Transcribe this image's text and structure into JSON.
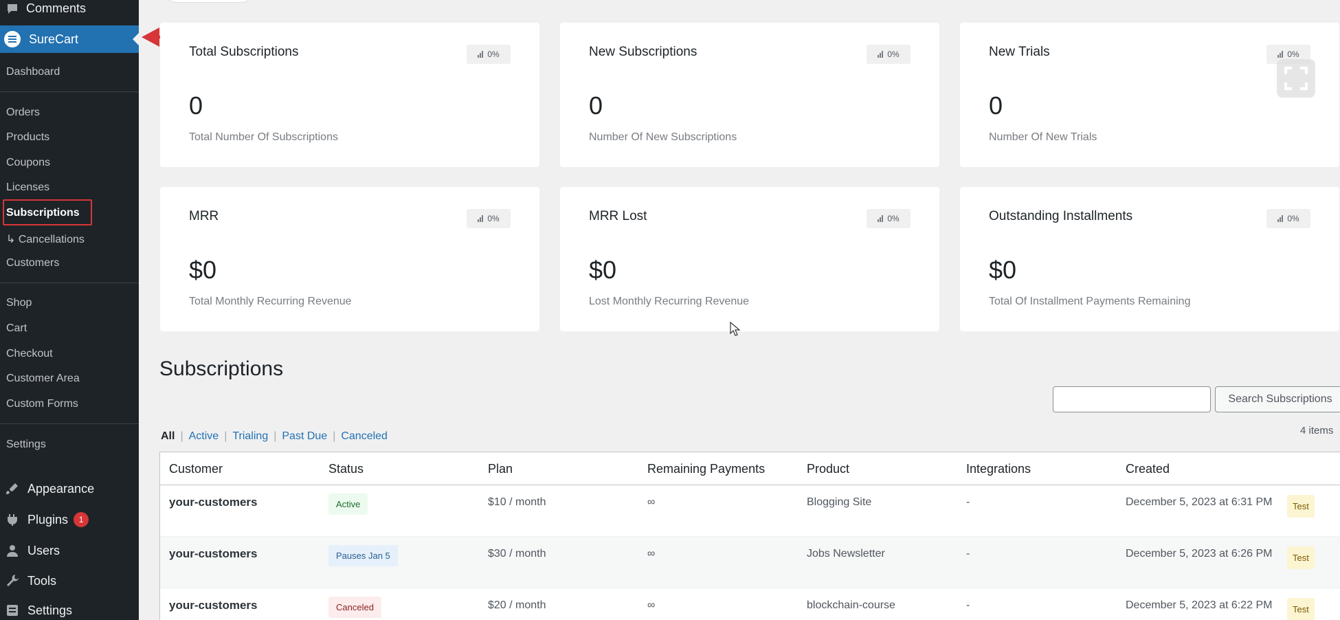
{
  "sidebar": {
    "comments_label": "Comments",
    "surecart_label": "SureCart",
    "sub_items": [
      "Dashboard",
      "Orders",
      "Products",
      "Coupons",
      "Licenses",
      "Subscriptions",
      "↳ Cancellations",
      "Customers",
      "Shop",
      "Cart",
      "Checkout",
      "Customer Area",
      "Custom Forms",
      "Settings"
    ],
    "main_items": [
      {
        "label": "Appearance",
        "icon": "paintbrush-icon"
      },
      {
        "label": "Plugins",
        "icon": "plugin-icon",
        "badge": "1"
      },
      {
        "label": "Users",
        "icon": "user-icon"
      },
      {
        "label": "Tools",
        "icon": "wrench-icon"
      },
      {
        "label": "Settings",
        "icon": "settings-icon"
      }
    ]
  },
  "stats": [
    {
      "title": "Total Subscriptions",
      "pct": "0%",
      "value": "0",
      "desc": "Total Number Of Subscriptions"
    },
    {
      "title": "New Subscriptions",
      "pct": "0%",
      "value": "0",
      "desc": "Number Of New Subscriptions"
    },
    {
      "title": "New Trials",
      "pct": "0%",
      "value": "0",
      "desc": "Number Of New Trials"
    },
    {
      "title": "MRR",
      "pct": "0%",
      "value": "$0",
      "desc": "Total Monthly Recurring Revenue"
    },
    {
      "title": "MRR Lost",
      "pct": "0%",
      "value": "$0",
      "desc": "Lost Monthly Recurring Revenue"
    },
    {
      "title": "Outstanding Installments",
      "pct": "0%",
      "value": "$0",
      "desc": "Total Of Installment Payments Remaining"
    }
  ],
  "subscriptions": {
    "title": "Subscriptions",
    "search_button": "Search Subscriptions",
    "search_value": "",
    "items_count": "4 items",
    "filters": [
      "All",
      "Active",
      "Trialing",
      "Past Due",
      "Canceled"
    ],
    "columns": [
      "Customer",
      "Status",
      "Plan",
      "Remaining Payments",
      "Product",
      "Integrations",
      "Created"
    ],
    "rows": [
      {
        "customer": "your-customers",
        "status": "Active",
        "status_type": "active",
        "plan": "$10 / month",
        "remaining": "∞",
        "product": "Blogging Site",
        "integrations": "-",
        "created": "December 5, 2023 at 6:31 PM",
        "mode": "Test"
      },
      {
        "customer": "your-customers",
        "status": "Pauses Jan 5",
        "status_type": "paused",
        "plan": "$30 / month",
        "remaining": "∞",
        "product": "Jobs Newsletter",
        "integrations": "-",
        "created": "December 5, 2023 at 6:26 PM",
        "mode": "Test"
      },
      {
        "customer": "your-customers",
        "status": "Canceled",
        "status_type": "canceled",
        "plan": "$20 / month",
        "remaining": "∞",
        "product": "blockchain-course",
        "integrations": "-",
        "created": "December 5, 2023 at 6:22 PM",
        "mode": "Test"
      }
    ]
  },
  "colors": {
    "sidebar_bg": "#1d2327",
    "accent": "#2271b1",
    "highlight": "#d63638"
  }
}
